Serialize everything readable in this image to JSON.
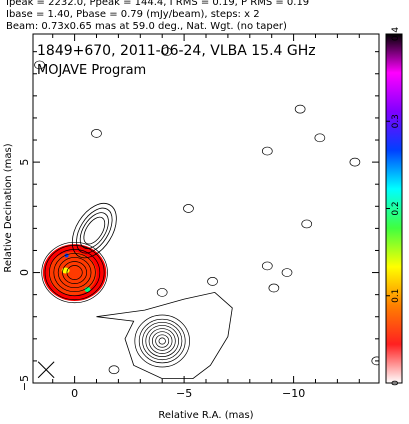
{
  "header": {
    "line1": "Ipeak = 2232.0, Ppeak = 144.4, I RMS = 0.19, P RMS = 0.19",
    "line2": "Ibase = 1.40, Pbase = 0.79 (mJy/beam), steps: x 2",
    "line3": "Beam: 0.73x0.65 mas at 59.0 deg., Nat. Wgt. (no taper)"
  },
  "chart_data": {
    "type": "contour",
    "title": "1849+670, 2011-06-24, VLBA 15.4 GHz",
    "subtitle": "MOJAVE Program",
    "xlabel": "Relative R.A. (mas)",
    "ylabel": "Relative Decination (mas)",
    "xlim": [
      1.9,
      -13.9
    ],
    "ylim": [
      -5.0,
      10.8
    ],
    "x_ticks": [
      0,
      -5,
      -10
    ],
    "x_tick_labels": [
      "0",
      "−5",
      "−10"
    ],
    "y_ticks": [
      -5,
      0,
      5
    ],
    "y_tick_labels": [
      "−5",
      "0",
      "5"
    ],
    "colorbar": {
      "min": 0,
      "max": 0.4,
      "ticks": [
        0,
        0.1,
        0.2,
        0.3,
        0.4
      ],
      "tick_labels": [
        "0",
        "0.1",
        "0.2",
        "0.3",
        "0.4"
      ],
      "colors": [
        "#ffffff",
        "#ff2020",
        "#ff8000",
        "#ffff00",
        "#40ff40",
        "#00ffff",
        "#0040ff",
        "#8000ff",
        "#ff00ff",
        "#000000"
      ]
    },
    "core": {
      "x": 0.0,
      "y": 0.0,
      "contour_radii": [
        0.35,
        0.55,
        0.75,
        0.95,
        1.15,
        1.35,
        1.5
      ],
      "fill_colors": [
        "#ff0000",
        "#ff3a00",
        "#ffff00",
        "#00ff80",
        "#0040ff"
      ]
    },
    "jet_extension": {
      "contour_peak": [
        -0.9,
        1.9
      ]
    },
    "component": {
      "x": -4.0,
      "y": -3.1,
      "contour_radii": [
        0.15,
        0.3,
        0.45,
        0.6,
        0.75,
        0.9,
        1.05,
        1.25
      ]
    },
    "beam": {
      "major_mas": 0.73,
      "minor_mas": 0.65,
      "pa_deg": 59.0,
      "marker_x": 1.3,
      "marker_y": -4.4
    },
    "noise_islands": [
      [
        1.6,
        9.4
      ],
      [
        -1.0,
        6.3
      ],
      [
        -8.8,
        5.5
      ],
      [
        -11.2,
        6.1
      ],
      [
        -10.3,
        7.4
      ],
      [
        -12.8,
        5.0
      ],
      [
        -5.2,
        2.9
      ],
      [
        -10.6,
        2.2
      ],
      [
        -8.8,
        0.3
      ],
      [
        -9.1,
        -0.7
      ],
      [
        -9.7,
        0.0
      ],
      [
        -6.3,
        -0.4
      ],
      [
        -4.0,
        -0.9
      ],
      [
        -1.8,
        -4.4
      ],
      [
        -13.8,
        -4.0
      ],
      [
        -4.1,
        -5.2
      ],
      [
        -6.1,
        11.4
      ],
      [
        -4.2,
        10.0
      ]
    ]
  }
}
